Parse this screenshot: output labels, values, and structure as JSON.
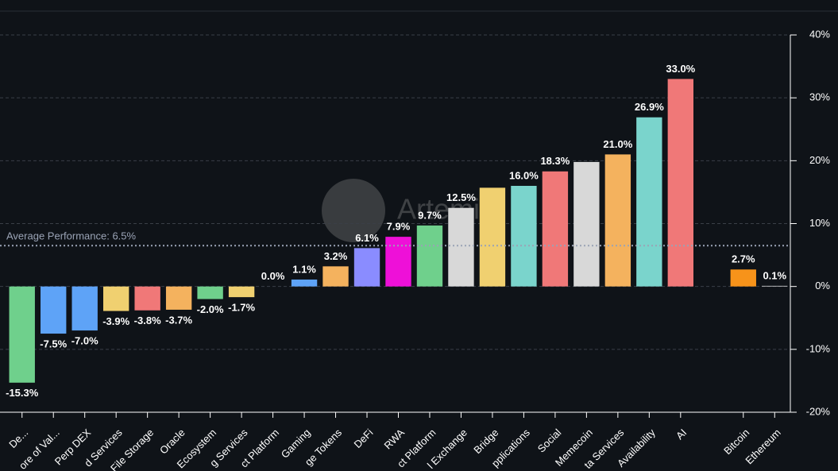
{
  "chart_data": {
    "type": "bar",
    "watermark": "Artemis",
    "categories": [
      "De...",
      "ore of Val...",
      "Perp DEX",
      "d Services",
      "File Storage",
      "Oracle",
      "Ecosystem",
      "g Services",
      "ct Platform",
      "Gaming",
      "ge Tokens",
      "DeFi",
      "RWA",
      "ct Platform",
      "l Exchange",
      "Bridge",
      "pplications",
      "Social",
      "Memecoin",
      "ta Services",
      "Availability",
      "AI",
      null,
      "Bitcoin",
      "Ethereum"
    ],
    "values": [
      -15.3,
      -7.5,
      -7.0,
      -3.9,
      -3.8,
      -3.7,
      -2.0,
      -1.7,
      0.0,
      1.1,
      3.2,
      6.1,
      7.9,
      9.7,
      12.5,
      15.7,
      16.0,
      18.3,
      19.8,
      21.0,
      26.9,
      33.0,
      null,
      2.7,
      0.1
    ],
    "value_labels": [
      "-15.3%",
      "-7.5%",
      "-7.0%",
      "-3.9%",
      "-3.8%",
      "-3.7%",
      "-2.0%",
      "-1.7%",
      "0.0%",
      "1.1%",
      "3.2%",
      "6.1%",
      "7.9%",
      "9.7%",
      "12.5%",
      null,
      "16.0%",
      "18.3%",
      null,
      "21.0%",
      "26.9%",
      "33.0%",
      null,
      "2.7%",
      "0.1%"
    ],
    "colors": [
      "#6fd08c",
      "#5ea3f7",
      "#5ea3f7",
      "#f0d070",
      "#f07878",
      "#f4b25e",
      "#6fd08c",
      "#f0d070",
      "#6fd08c",
      "#5ea3f7",
      "#f4b25e",
      "#8a8cff",
      "#ee10d8",
      "#6fd08c",
      "#d8d8d8",
      "#f0d070",
      "#7ad4cc",
      "#f07878",
      "#d8d8d8",
      "#f4b25e",
      "#7ad4cc",
      "#f07878",
      null,
      "#f7931a",
      "#d8d8d8"
    ],
    "average": {
      "label": "Average Performance: 6.5%",
      "value": 6.5
    },
    "ylim": [
      -20,
      40
    ],
    "yticks": [
      {
        "value": -20,
        "label": "-20%"
      },
      {
        "value": -10,
        "label": "-10%"
      },
      {
        "value": 0,
        "label": "0%"
      },
      {
        "value": 10,
        "label": "10%"
      },
      {
        "value": 20,
        "label": "20%"
      },
      {
        "value": 30,
        "label": "30%"
      },
      {
        "value": 40,
        "label": "40%"
      }
    ],
    "grid": true
  }
}
